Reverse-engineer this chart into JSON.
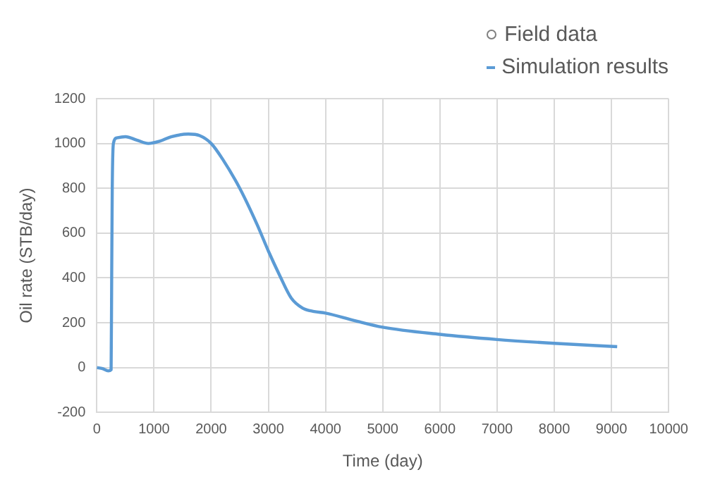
{
  "chart_data": {
    "type": "line",
    "xlabel": "Time (day)",
    "ylabel": "Oil rate (STB/day)",
    "xlim": [
      0,
      10000
    ],
    "xticks": [
      0,
      1000,
      2000,
      3000,
      4000,
      5000,
      6000,
      7000,
      8000,
      9000,
      10000
    ],
    "ylim": [
      -200,
      1200
    ],
    "yticks": [
      -200,
      0,
      200,
      400,
      600,
      800,
      1000,
      1200
    ],
    "grid": true,
    "legend": "top right",
    "series": [
      {
        "name": "Field data",
        "type": "scatter",
        "marker": "circle",
        "color": "#7f7f7f"
      },
      {
        "name": "Simulation results",
        "marker": "none",
        "color": "#5b9bd5",
        "x": [
          0,
          100,
          200,
          250,
          260,
          270,
          290,
          350,
          500,
          700,
          900,
          1100,
          1300,
          1600,
          1800,
          2000,
          2200,
          2500,
          2800,
          3000,
          3200,
          3400,
          3600,
          3800,
          4000,
          4500,
          5000,
          6000,
          7000,
          8000,
          9100
        ],
        "values": [
          0,
          -5,
          -15,
          -10,
          400,
          800,
          1000,
          1025,
          1030,
          1015,
          1000,
          1010,
          1030,
          1042,
          1035,
          1000,
          930,
          800,
          640,
          520,
          410,
          310,
          265,
          250,
          243,
          210,
          180,
          148,
          125,
          108,
          93
        ]
      }
    ]
  }
}
